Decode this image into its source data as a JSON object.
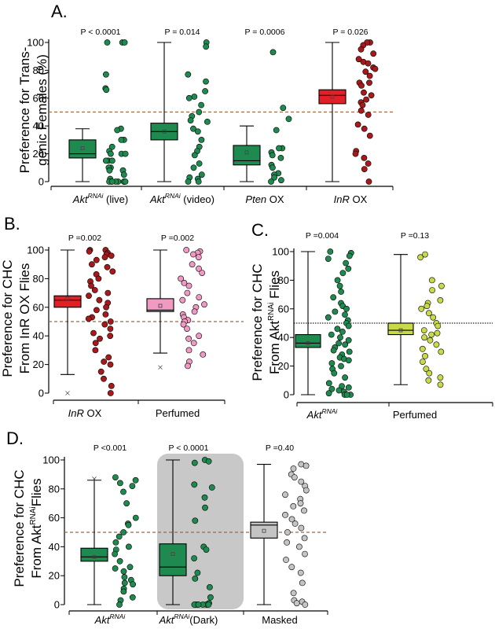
{
  "colors": {
    "green": "#1e8a4f",
    "red": "#e11f26",
    "darkred": "#a8191c",
    "pink": "#ef99c3",
    "lime": "#c8d94a",
    "gray": "#c4c4c4",
    "shade": "#c8c8c8",
    "refline_brown": "#9a6a45",
    "refline_black": "#222222"
  },
  "chart_data": [
    {
      "panel": "A.",
      "type": "box",
      "ylabel": [
        "Preference for Trans-",
        "genic Females (%)"
      ],
      "ylim": [
        0,
        100
      ],
      "yticks": [
        0,
        20,
        40,
        60,
        80,
        100
      ],
      "reference_line": 50,
      "reference_style": "brown-dashed",
      "categories": [
        {
          "main": "Akt",
          "sup": "RNAi",
          "suffix": " (live)",
          "italic": true,
          "pvalue": "P < 0.0001",
          "box": {
            "min": 0,
            "q1": 17,
            "median": 20,
            "q3": 30,
            "max": 38,
            "mean": 24
          },
          "points": [
            100,
            100,
            100,
            77,
            67,
            66,
            38,
            37,
            30,
            30,
            25,
            22,
            20,
            20,
            20,
            15,
            15,
            15,
            10,
            10,
            8,
            8,
            5,
            2,
            0,
            0,
            0,
            0,
            0,
            0,
            0,
            0,
            0
          ],
          "box_color": "green",
          "dot_color": "green"
        },
        {
          "main": "Akt",
          "sup": "RNAi",
          "suffix": " (video)",
          "italic": true,
          "pvalue": "P = 0.014",
          "box": {
            "min": 0,
            "q1": 30,
            "median": 36,
            "q3": 42,
            "max": 100,
            "mean": 36
          },
          "points": [
            100,
            97,
            77,
            72,
            65,
            61,
            60,
            55,
            50,
            47,
            44,
            43,
            38,
            36,
            30,
            25,
            22,
            19,
            13,
            10,
            5,
            3,
            2,
            0,
            0
          ],
          "box_color": "green",
          "dot_color": "green"
        },
        {
          "main": "Pten",
          "sup": "",
          "suffix": " OX",
          "italic": true,
          "pvalue": "P = 0.0006",
          "box": {
            "min": 0,
            "q1": 12,
            "median": 15,
            "q3": 26,
            "max": 40,
            "mean": 21
          },
          "points": [
            93,
            53,
            45,
            37,
            24,
            24,
            21,
            19,
            17,
            12,
            10,
            6,
            5,
            3,
            1,
            0
          ],
          "box_color": "green",
          "dot_color": "green"
        },
        {
          "main": "InR",
          "sup": "",
          "suffix": " OX",
          "italic": true,
          "pvalue": "P = 0.026",
          "box": {
            "min": 0,
            "q1": 56,
            "median": 62,
            "q3": 66,
            "max": 100,
            "mean": 61
          },
          "points": [
            100,
            100,
            98,
            95,
            92,
            88,
            86,
            85,
            82,
            81,
            79,
            76,
            71,
            71,
            69,
            64,
            62,
            59,
            57,
            55,
            51,
            48,
            41,
            38,
            33,
            22,
            20,
            17,
            13,
            9,
            0
          ],
          "box_color": "red",
          "dot_color": "darkred"
        }
      ]
    },
    {
      "panel": "B.",
      "type": "box",
      "ylabel": [
        "Preference for CHC",
        "From InR OX Flies"
      ],
      "ylim": [
        0,
        100
      ],
      "yticks": [
        0,
        20,
        40,
        60,
        80,
        100
      ],
      "reference_line": 50,
      "reference_style": "brown-dashed",
      "categories": [
        {
          "main": "InR",
          "sup": "",
          "suffix": " OX",
          "italic": true,
          "pvalue": "P =0.002",
          "box": {
            "min": 13,
            "q1": 60,
            "median": 65,
            "q3": 68,
            "max": 100,
            "mean": 66
          },
          "outliers": [
            0
          ],
          "points": [
            100,
            100,
            99,
            98,
            97,
            96,
            95,
            93,
            90,
            88,
            85,
            83,
            80,
            78,
            75,
            72,
            70,
            68,
            65,
            63,
            60,
            58,
            55,
            53,
            52,
            50,
            48,
            45,
            42,
            40,
            38,
            35,
            30,
            25,
            22,
            20,
            15,
            10,
            5,
            0
          ],
          "box_color": "red",
          "dot_color": "darkred"
        },
        {
          "main": "Perfumed",
          "sup": "",
          "suffix": "",
          "italic": false,
          "pvalue": "P =0.002",
          "box": {
            "min": 28,
            "q1": 57,
            "median": 58,
            "q3": 66,
            "max": 100,
            "mean": 61
          },
          "outliers": [
            18
          ],
          "points": [
            100,
            99,
            98,
            97,
            95,
            90,
            87,
            84,
            80,
            77,
            75,
            70,
            67,
            65,
            62,
            60,
            57,
            55,
            53,
            51,
            50,
            48,
            45,
            40,
            38,
            35,
            30,
            27,
            22,
            19
          ],
          "box_color": "pink",
          "dot_color": "pink"
        }
      ]
    },
    {
      "panel": "C.",
      "type": "box",
      "ylabel": [
        "Preference for CHC",
        "From Akt",
        "RNAi",
        " Flies"
      ],
      "ylim": [
        0,
        100
      ],
      "yticks": [
        0,
        20,
        40,
        60,
        80,
        100
      ],
      "reference_line": 50,
      "reference_style": "black-dotted",
      "categories": [
        {
          "main": "Akt",
          "sup": "RNAi",
          "suffix": "",
          "italic": true,
          "pvalue": "P =0.004",
          "box": {
            "min": 0,
            "q1": 33,
            "median": 36,
            "q3": 42,
            "max": 100,
            "mean": 36
          },
          "points": [
            100,
            99,
            97,
            95,
            92,
            88,
            85,
            80,
            76,
            72,
            68,
            64,
            62,
            60,
            58,
            56,
            54,
            52,
            50,
            48,
            46,
            44,
            42,
            40,
            38,
            36,
            35,
            33,
            31,
            30,
            28,
            26,
            25,
            24,
            22,
            20,
            18,
            15,
            12,
            8,
            6,
            5,
            4,
            3,
            2,
            1,
            0,
            0,
            0
          ],
          "box_color": "green",
          "dot_color": "green"
        },
        {
          "main": "Perfumed",
          "sup": "",
          "suffix": "",
          "italic": false,
          "pvalue": "P =0.13",
          "box": {
            "min": 7,
            "q1": 42,
            "median": 45,
            "q3": 50,
            "max": 98,
            "mean": 45
          },
          "points": [
            98,
            96,
            80,
            76,
            73,
            66,
            64,
            62,
            60,
            57,
            54,
            50,
            48,
            45,
            43,
            42,
            40,
            38,
            35,
            32,
            30,
            27,
            23,
            18,
            15,
            12,
            10,
            7
          ],
          "box_color": "lime",
          "dot_color": "lime"
        }
      ]
    },
    {
      "panel": "D.",
      "type": "box",
      "ylabel": [
        "Preference for CHC",
        "From Akt",
        "RNAi",
        "Flies"
      ],
      "ylim": [
        0,
        100
      ],
      "yticks": [
        0,
        20,
        40,
        60,
        80,
        100
      ],
      "reference_line": 50,
      "reference_style": "brown-dashed",
      "shaded_category": 1,
      "categories": [
        {
          "main": "Akt",
          "sup": "RNAi",
          "suffix": "",
          "italic": true,
          "pvalue": "P <0.001",
          "box": {
            "min": 0,
            "q1": 30,
            "median": 33,
            "q3": 39,
            "max": 86,
            "mean": 33
          },
          "outliers": [
            87
          ],
          "points": [
            88,
            86,
            84,
            82,
            78,
            70,
            60,
            56,
            55,
            50,
            47,
            43,
            40,
            38,
            35,
            30,
            26,
            25,
            23,
            19,
            17,
            15,
            14,
            11,
            9,
            5,
            3,
            0
          ],
          "box_color": "green",
          "dot_color": "green"
        },
        {
          "main": "Akt",
          "sup": "RNAi",
          "suffix": "(Dark)",
          "italic": true,
          "pvalue": "P < 0.0001",
          "box": {
            "min": 0,
            "q1": 20,
            "median": 26,
            "q3": 42,
            "max": 100,
            "mean": 35
          },
          "points": [
            100,
            99,
            98,
            83,
            81,
            74,
            67,
            58,
            40,
            38,
            32,
            22,
            18,
            12,
            5,
            1,
            0,
            0,
            0,
            0,
            0,
            0,
            0,
            0
          ],
          "box_color": "green",
          "dot_color": "green"
        },
        {
          "main": "Masked",
          "sup": "",
          "suffix": "",
          "italic": false,
          "pvalue": "P =0.40",
          "box": {
            "min": 0,
            "q1": 46,
            "median": 55,
            "q3": 57,
            "max": 97,
            "mean": 51
          },
          "points": [
            97,
            96,
            94,
            90,
            88,
            85,
            82,
            79,
            76,
            73,
            70,
            68,
            65,
            62,
            59,
            56,
            53,
            50,
            46,
            43,
            40,
            35,
            31,
            26,
            22,
            15,
            8,
            3,
            2,
            1,
            0
          ],
          "box_color": "gray",
          "dot_color": "gray"
        }
      ]
    }
  ]
}
